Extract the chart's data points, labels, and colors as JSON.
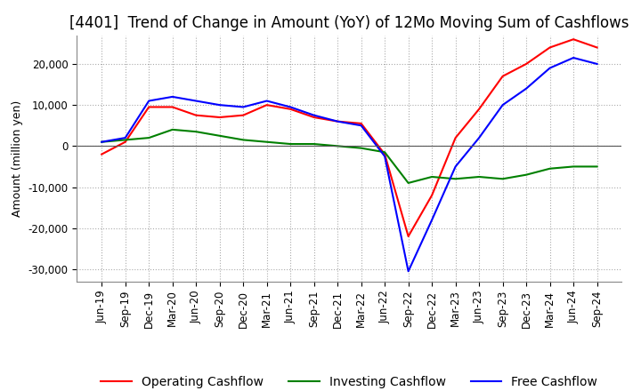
{
  "title": "[4401]  Trend of Change in Amount (YoY) of 12Mo Moving Sum of Cashflows",
  "ylabel": "Amount (million yen)",
  "x_labels": [
    "Jun-19",
    "Sep-19",
    "Dec-19",
    "Mar-20",
    "Jun-20",
    "Sep-20",
    "Dec-20",
    "Mar-21",
    "Jun-21",
    "Sep-21",
    "Dec-21",
    "Mar-22",
    "Jun-22",
    "Sep-22",
    "Dec-22",
    "Mar-23",
    "Jun-23",
    "Sep-23",
    "Dec-23",
    "Mar-24",
    "Jun-24",
    "Sep-24"
  ],
  "operating": [
    -2000,
    1000,
    9500,
    9500,
    7500,
    7000,
    7500,
    10000,
    9000,
    7000,
    6000,
    5500,
    -2000,
    -22000,
    -12000,
    2000,
    9000,
    17000,
    20000,
    24000,
    26000,
    24000
  ],
  "investing": [
    1000,
    1500,
    2000,
    4000,
    3500,
    2500,
    1500,
    1000,
    500,
    500,
    0,
    -500,
    -1500,
    -9000,
    -7500,
    -8000,
    -7500,
    -8000,
    -7000,
    -5500,
    -5000,
    -5000
  ],
  "free": [
    1000,
    2000,
    11000,
    12000,
    11000,
    10000,
    9500,
    11000,
    9500,
    7500,
    6000,
    5000,
    -2500,
    -30500,
    -18000,
    -5000,
    2000,
    10000,
    14000,
    19000,
    21500,
    20000
  ],
  "operating_color": "#ff0000",
  "investing_color": "#008000",
  "free_color": "#0000ff",
  "ylim": [
    -33000,
    27000
  ],
  "yticks": [
    -30000,
    -20000,
    -10000,
    0,
    10000,
    20000
  ],
  "grid_color": "#aaaaaa",
  "background_color": "#ffffff",
  "title_fontsize": 12,
  "legend_fontsize": 10,
  "tick_fontsize": 8.5
}
